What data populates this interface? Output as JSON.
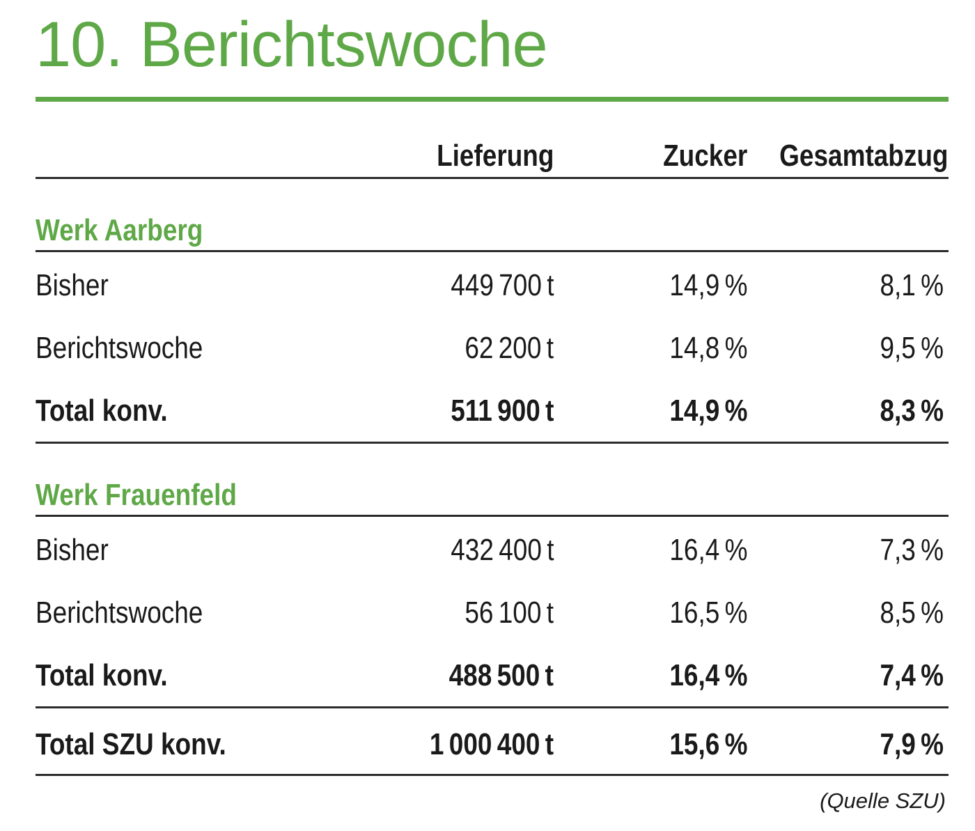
{
  "page": {
    "title": "10. Berichtswoche",
    "source_note": "(Quelle SZU)"
  },
  "colors": {
    "accent_green": "#5fa847",
    "rule_dark": "#2b2b2b",
    "text": "#1a1a1a"
  },
  "table": {
    "columns": [
      "Lieferung",
      "Zucker",
      "Gesamtabzug"
    ],
    "sections": [
      {
        "name": "Werk Aarberg",
        "rows": [
          {
            "label": "Bisher",
            "lieferung": "449 700 t",
            "zucker": "14,9 %",
            "gesamtabzug": "8,1 %",
            "emphasis": false
          },
          {
            "label": "Berichtswoche",
            "lieferung": "62 200 t",
            "zucker": "14,8 %",
            "gesamtabzug": "9,5 %",
            "emphasis": false
          },
          {
            "label": "Total konv.",
            "lieferung": "511 900 t",
            "zucker": "14,9 %",
            "gesamtabzug": "8,3 %",
            "emphasis": true
          }
        ]
      },
      {
        "name": "Werk Frauenfeld",
        "rows": [
          {
            "label": "Bisher",
            "lieferung": "432 400 t",
            "zucker": "16,4 %",
            "gesamtabzug": "7,3 %",
            "emphasis": false
          },
          {
            "label": "Berichtswoche",
            "lieferung": "56 100 t",
            "zucker": "16,5 %",
            "gesamtabzug": "8,5 %",
            "emphasis": false
          },
          {
            "label": "Total konv.",
            "lieferung": "488 500 t",
            "zucker": "16,4 %",
            "gesamtabzug": "7,4 %",
            "emphasis": true
          }
        ]
      }
    ],
    "grand_total": {
      "label": "Total SZU konv.",
      "lieferung": "1 000 400 t",
      "zucker": "15,6 %",
      "gesamtabzug": "7,9 %"
    }
  }
}
